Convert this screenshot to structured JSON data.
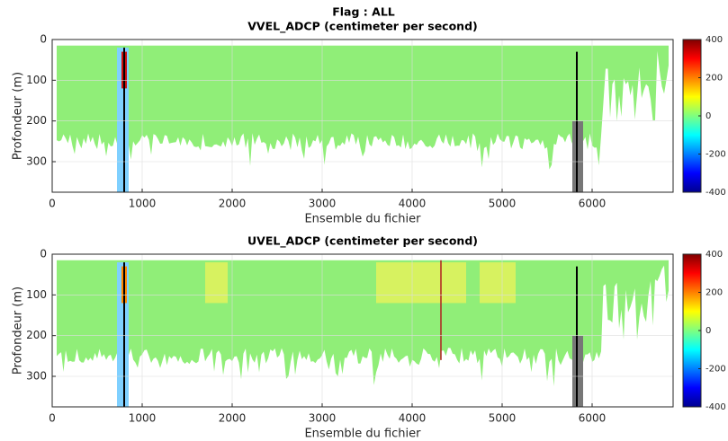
{
  "title": "Flag : ALL",
  "chart_data": [
    {
      "type": "heatmap",
      "title": "VVEL_ADCP (centimeter per second)",
      "xlabel": "Ensemble du fichier",
      "ylabel": "Profondeur (m)",
      "xlim": [
        0,
        6900
      ],
      "xticks": [
        0,
        1000,
        2000,
        3000,
        4000,
        5000,
        6000
      ],
      "ylim": [
        0,
        375
      ],
      "y_reversed": true,
      "yticks": [
        0,
        100,
        200,
        300
      ],
      "clim": [
        -400,
        400
      ],
      "cticks": [
        -400,
        -200,
        0,
        200,
        400
      ],
      "colormap": "jet",
      "grid": true
    },
    {
      "type": "heatmap",
      "title": "UVEL_ADCP (centimeter per second)",
      "xlabel": "Ensemble du fichier",
      "ylabel": "Profondeur (m)",
      "xlim": [
        0,
        6900
      ],
      "xticks": [
        0,
        1000,
        2000,
        3000,
        4000,
        5000,
        6000
      ],
      "ylim": [
        0,
        375
      ],
      "y_reversed": true,
      "yticks": [
        0,
        100,
        200,
        300
      ],
      "clim": [
        -400,
        400
      ],
      "cticks": [
        -400,
        -200,
        0,
        200,
        400
      ],
      "colormap": "jet",
      "grid": true
    }
  ]
}
